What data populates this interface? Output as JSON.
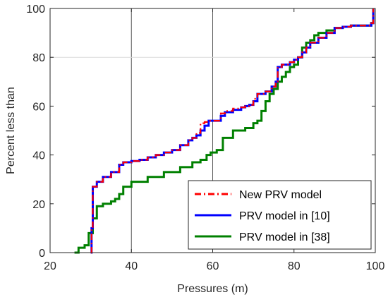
{
  "chart_data": {
    "type": "line",
    "title": "",
    "xlabel": "Pressures (m)",
    "ylabel": "Percent less than",
    "xlim": [
      20,
      100
    ],
    "ylim": [
      0,
      100
    ],
    "xticks": [
      20,
      40,
      60,
      80,
      100
    ],
    "yticks": [
      0,
      20,
      40,
      60,
      80,
      100
    ],
    "xtick_labels": [
      "20",
      "40",
      "60",
      "80",
      "100"
    ],
    "ytick_labels": [
      "0",
      "20",
      "40",
      "60",
      "80",
      "100"
    ],
    "vertical_gridlines": [
      40,
      60
    ],
    "horizontal_gridlines": [
      80
    ],
    "legend_position": "bottom-right",
    "series": [
      {
        "name": "New PRV model",
        "color": "#ff0000",
        "style": "dashdot",
        "x": [
          30.0,
          30.2,
          30.5,
          31.5,
          33.0,
          35.0,
          37.0,
          38.0,
          40.0,
          42.0,
          44.0,
          46.0,
          48.0,
          50.0,
          52.0,
          54.0,
          55.0,
          56.0,
          57.0,
          58.0,
          59.0,
          60.0,
          61.0,
          62.0,
          63.0,
          65.0,
          67.0,
          68.0,
          69.0,
          70.0,
          71.0,
          73.0,
          74.5,
          75.5,
          76.0,
          77.0,
          78.0,
          79.0,
          80.0,
          81.0,
          82.0,
          83.0,
          84.0,
          86.0,
          88.0,
          90.0,
          92.0,
          94.0,
          96.0,
          98.0,
          99.0,
          99.5
        ],
        "y": [
          0,
          10,
          27,
          29,
          31,
          33,
          36,
          37,
          37.5,
          38,
          39,
          40,
          41,
          42,
          44,
          46,
          47,
          49,
          53,
          53.5,
          54,
          54,
          54,
          57,
          58,
          59,
          59.5,
          60,
          60.5,
          63,
          65,
          66,
          68,
          70,
          76,
          77,
          77,
          78,
          79,
          80,
          82,
          84,
          86,
          88,
          90,
          92,
          92.5,
          93,
          93,
          93,
          94,
          100
        ]
      },
      {
        "name": "PRV model in [10]",
        "color": "#0000ff",
        "style": "solid",
        "x": [
          30.0,
          30.2,
          30.5,
          31.5,
          33.0,
          35.0,
          37.0,
          38.0,
          40.0,
          42.0,
          44.0,
          46.0,
          48.0,
          50.0,
          52.0,
          54.0,
          55.0,
          56.0,
          57.0,
          58.0,
          59.0,
          60.0,
          61.0,
          62.0,
          63.0,
          65.0,
          67.0,
          68.0,
          69.0,
          70.0,
          71.0,
          73.0,
          74.5,
          75.5,
          76.0,
          77.0,
          78.0,
          79.0,
          80.0,
          81.0,
          82.0,
          83.0,
          84.0,
          86.0,
          88.0,
          90.0,
          92.0,
          94.0,
          96.0,
          98.0,
          99.0,
          99.5
        ],
        "y": [
          0,
          10,
          27,
          29,
          31,
          33,
          36,
          37,
          37.5,
          38,
          39,
          40,
          41,
          42,
          44,
          46,
          47,
          48,
          50,
          52,
          54,
          54,
          54,
          56,
          57.5,
          58.5,
          59.5,
          60,
          60.5,
          62,
          65,
          66,
          68,
          70,
          76,
          77,
          77,
          78,
          79,
          80,
          82,
          84,
          86,
          88,
          90,
          92,
          92.5,
          93,
          93,
          93,
          94,
          100
        ]
      },
      {
        "name": "PRV model in [38]",
        "color": "#008000",
        "style": "solid",
        "x": [
          26.0,
          27.0,
          28.5,
          29.5,
          30.5,
          31.5,
          33.0,
          35.0,
          36.0,
          37.0,
          38.0,
          40.0,
          44.0,
          48.0,
          52.0,
          55.0,
          57.0,
          58.5,
          59.5,
          61.0,
          62.5,
          65.0,
          68.0,
          70.0,
          71.0,
          72.0,
          73.0,
          74.0,
          75.0,
          76.0,
          77.0,
          78.0,
          79.0,
          80.0,
          81.0,
          82.0,
          83.0,
          84.0,
          85.0,
          86.0,
          88.0,
          90.0,
          92.0,
          94.0,
          96.0,
          98.0,
          99.0,
          99.5
        ],
        "y": [
          0,
          2,
          3,
          8,
          14,
          19,
          20,
          21,
          22,
          24,
          27,
          29,
          31,
          33,
          35,
          37,
          38,
          40,
          41,
          42,
          47,
          50,
          51,
          53,
          54,
          58,
          62,
          65,
          67,
          70,
          72,
          74,
          76,
          77,
          80,
          84,
          86,
          87,
          89,
          90,
          91,
          92,
          92.5,
          93,
          93,
          93,
          94,
          100
        ]
      }
    ]
  }
}
